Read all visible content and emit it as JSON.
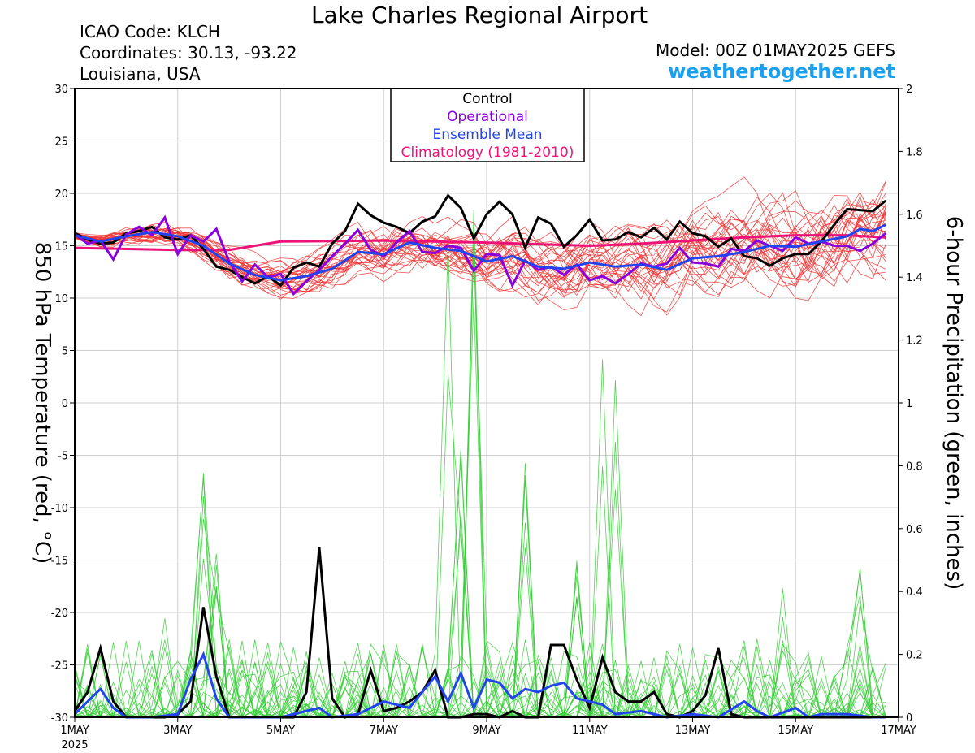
{
  "header": {
    "title": "Lake Charles Regional Airport",
    "icao": "ICAO Code: KLCH",
    "coords": "Coordinates: 30.13, -93.22",
    "location": "Louisiana, USA",
    "model": "Model: 00Z 01MAY2025 GEFS",
    "site": "weathertogether.net"
  },
  "chart_data": {
    "type": "line",
    "xlabel_ticks": [
      "1MAY",
      "3MAY",
      "5MAY",
      "7MAY",
      "9MAY",
      "11MAY",
      "13MAY",
      "15MAY",
      "17MAY"
    ],
    "x_year_label": "2025",
    "x_range_days": [
      0,
      16
    ],
    "y_left": {
      "label": "850 hPa Temperature (red, °C)",
      "range": [
        -30,
        30
      ],
      "ticks": [
        "30",
        "25",
        "20",
        "15",
        "10",
        "5",
        "0",
        "-5",
        "-10",
        "-15",
        "-20",
        "-25",
        "-30"
      ]
    },
    "y_right": {
      "label": "6-hour Precipitation (green, inches)",
      "range": [
        0,
        2
      ],
      "ticks": [
        "2",
        "1.8",
        "1.6",
        "1.4",
        "1.2",
        "1",
        "0.8",
        "0.6",
        "0.4",
        "0.2",
        "0"
      ]
    },
    "legend": {
      "placement": "top-center",
      "entries": [
        {
          "label": "Control",
          "color": "#000000"
        },
        {
          "label": "Operational",
          "color": "#8800dd"
        },
        {
          "label": "Ensemble Mean",
          "color": "#2244ee"
        },
        {
          "label": "Climatology (1981-2010)",
          "color": "#ee1177"
        }
      ]
    },
    "colors": {
      "member_temp": "#ee3333",
      "member_precip": "#33cc33",
      "control": "#000000",
      "operational": "#8800dd",
      "mean": "#2244ee",
      "climatology": "#ee1177"
    },
    "series_temperature": {
      "control": [
        [
          0,
          16.2
        ],
        [
          0.25,
          15.6
        ],
        [
          0.5,
          15.2
        ],
        [
          0.75,
          15.3
        ],
        [
          1,
          16.2
        ],
        [
          1.25,
          16.4
        ],
        [
          1.5,
          16.8
        ],
        [
          1.75,
          15.8
        ],
        [
          2,
          15.6
        ],
        [
          2.25,
          16.0
        ],
        [
          2.5,
          14.7
        ],
        [
          2.75,
          13.0
        ],
        [
          3,
          12.7
        ],
        [
          3.25,
          12.0
        ],
        [
          3.5,
          11.4
        ],
        [
          3.75,
          12.1
        ],
        [
          4,
          11.2
        ],
        [
          4.25,
          12.9
        ],
        [
          4.5,
          13.4
        ],
        [
          4.75,
          13.0
        ],
        [
          5,
          15.2
        ],
        [
          5.25,
          16.4
        ],
        [
          5.5,
          19.0
        ],
        [
          5.75,
          17.9
        ],
        [
          6,
          17.2
        ],
        [
          6.25,
          16.8
        ],
        [
          6.5,
          16.2
        ],
        [
          6.75,
          17.3
        ],
        [
          7,
          17.8
        ],
        [
          7.25,
          19.8
        ],
        [
          7.5,
          18.6
        ],
        [
          7.75,
          15.7
        ],
        [
          8,
          18.0
        ],
        [
          8.25,
          19.2
        ],
        [
          8.5,
          18.0
        ],
        [
          8.75,
          14.8
        ],
        [
          9,
          17.7
        ],
        [
          9.25,
          17.1
        ],
        [
          9.5,
          14.9
        ],
        [
          9.75,
          16.0
        ],
        [
          10,
          17.5
        ],
        [
          10.25,
          15.5
        ],
        [
          10.5,
          15.6
        ],
        [
          10.75,
          16.3
        ],
        [
          11,
          15.8
        ],
        [
          11.25,
          16.7
        ],
        [
          11.5,
          15.6
        ],
        [
          11.75,
          17.3
        ],
        [
          12,
          16.2
        ],
        [
          12.25,
          15.9
        ],
        [
          12.5,
          14.9
        ],
        [
          12.75,
          15.7
        ],
        [
          13,
          14.0
        ],
        [
          13.25,
          13.8
        ],
        [
          13.5,
          13.1
        ],
        [
          13.75,
          13.8
        ],
        [
          14,
          14.2
        ],
        [
          14.25,
          14.2
        ],
        [
          14.5,
          15.4
        ],
        [
          14.75,
          17.0
        ],
        [
          15,
          18.5
        ],
        [
          15.25,
          18.4
        ],
        [
          15.5,
          18.3
        ],
        [
          15.75,
          19.3
        ]
      ],
      "operational": [
        [
          0,
          16.1
        ],
        [
          0.25,
          15.2
        ],
        [
          0.5,
          15.5
        ],
        [
          0.75,
          13.7
        ],
        [
          1,
          16.1
        ],
        [
          1.25,
          16.8
        ],
        [
          1.5,
          16.0
        ],
        [
          1.75,
          17.7
        ],
        [
          2,
          14.2
        ],
        [
          2.25,
          16.0
        ],
        [
          2.5,
          15.4
        ],
        [
          2.75,
          16.6
        ],
        [
          3,
          13.5
        ],
        [
          3.25,
          11.6
        ],
        [
          3.5,
          13.2
        ],
        [
          3.75,
          12.0
        ],
        [
          4,
          12.3
        ],
        [
          4.25,
          10.4
        ],
        [
          4.5,
          11.6
        ],
        [
          4.75,
          12.7
        ],
        [
          5,
          14.0
        ],
        [
          5.25,
          15.2
        ],
        [
          5.5,
          16.5
        ],
        [
          5.75,
          14.6
        ],
        [
          6,
          14.0
        ],
        [
          6.25,
          15.3
        ],
        [
          6.5,
          16.4
        ],
        [
          6.75,
          14.4
        ],
        [
          7,
          14.3
        ],
        [
          7.25,
          15.0
        ],
        [
          7.5,
          14.8
        ],
        [
          7.75,
          12.6
        ],
        [
          8,
          14.2
        ],
        [
          8.25,
          14.1
        ],
        [
          8.5,
          11.2
        ],
        [
          8.75,
          13.6
        ],
        [
          9,
          12.7
        ],
        [
          9.25,
          13.0
        ],
        [
          9.5,
          12.2
        ],
        [
          9.75,
          13.2
        ],
        [
          10,
          11.7
        ],
        [
          10.25,
          12.1
        ],
        [
          10.5,
          11.4
        ],
        [
          10.75,
          12.3
        ],
        [
          11,
          13.3
        ],
        [
          11.25,
          13.0
        ],
        [
          11.5,
          13.3
        ],
        [
          11.75,
          14.8
        ],
        [
          12,
          13.4
        ],
        [
          12.25,
          13.3
        ],
        [
          12.5,
          13.0
        ],
        [
          12.75,
          14.7
        ],
        [
          13,
          14.5
        ],
        [
          13.25,
          15.5
        ],
        [
          13.5,
          15.0
        ],
        [
          13.75,
          14.5
        ],
        [
          14,
          15.8
        ],
        [
          14.25,
          15.2
        ],
        [
          14.5,
          15.4
        ],
        [
          14.75,
          15.0
        ],
        [
          15,
          15.0
        ],
        [
          15.25,
          14.5
        ],
        [
          15.5,
          15.2
        ],
        [
          15.75,
          16.2
        ]
      ],
      "mean": [
        [
          0,
          16.0
        ],
        [
          0.5,
          15.4
        ],
        [
          1,
          15.9
        ],
        [
          1.5,
          16.3
        ],
        [
          2,
          15.9
        ],
        [
          2.5,
          15.0
        ],
        [
          3,
          13.3
        ],
        [
          3.5,
          12.2
        ],
        [
          4,
          11.7
        ],
        [
          4.5,
          12.1
        ],
        [
          5,
          12.8
        ],
        [
          5.5,
          14.4
        ],
        [
          6,
          14.2
        ],
        [
          6.5,
          15.3
        ],
        [
          7,
          14.8
        ],
        [
          7.5,
          14.5
        ],
        [
          8,
          13.5
        ],
        [
          8.5,
          14.0
        ],
        [
          9,
          13.0
        ],
        [
          9.5,
          12.8
        ],
        [
          10,
          13.4
        ],
        [
          10.5,
          13.0
        ],
        [
          11,
          13.2
        ],
        [
          11.5,
          12.7
        ],
        [
          12,
          13.8
        ],
        [
          12.5,
          14.0
        ],
        [
          13,
          14.4
        ],
        [
          13.5,
          15.0
        ],
        [
          14,
          14.9
        ],
        [
          14.5,
          15.4
        ],
        [
          15,
          15.9
        ],
        [
          15.25,
          16.6
        ],
        [
          15.5,
          16.4
        ],
        [
          15.75,
          17.0
        ]
      ],
      "climatology": [
        [
          0,
          14.8
        ],
        [
          2,
          14.6
        ],
        [
          3,
          14.6
        ],
        [
          4,
          15.4
        ],
        [
          6,
          15.5
        ],
        [
          8,
          15.3
        ],
        [
          10,
          15.0
        ],
        [
          11,
          15.2
        ],
        [
          13,
          15.8
        ],
        [
          14,
          16.0
        ],
        [
          15,
          16.0
        ],
        [
          15.75,
          15.8
        ]
      ]
    },
    "series_precipitation": {
      "control": [
        [
          0,
          0.02
        ],
        [
          0.25,
          0.08
        ],
        [
          0.5,
          0.22
        ],
        [
          0.75,
          0.05
        ],
        [
          1,
          0.0
        ],
        [
          1.25,
          0.0
        ],
        [
          1.5,
          0.0
        ],
        [
          1.75,
          0.0
        ],
        [
          2,
          0.01
        ],
        [
          2.25,
          0.05
        ],
        [
          2.5,
          0.35
        ],
        [
          2.75,
          0.13
        ],
        [
          3,
          0.0
        ],
        [
          3.25,
          0.0
        ],
        [
          3.5,
          0.0
        ],
        [
          3.75,
          0.0
        ],
        [
          4,
          0.0
        ],
        [
          4.25,
          0.0
        ],
        [
          4.5,
          0.08
        ],
        [
          4.75,
          0.54
        ],
        [
          5,
          0.06
        ],
        [
          5.25,
          0.0
        ],
        [
          5.5,
          0.01
        ],
        [
          5.75,
          0.15
        ],
        [
          6,
          0.02
        ],
        [
          6.25,
          0.03
        ],
        [
          6.5,
          0.05
        ],
        [
          6.75,
          0.08
        ],
        [
          7,
          0.15
        ],
        [
          7.25,
          0.0
        ],
        [
          7.5,
          0.0
        ],
        [
          7.75,
          0.01
        ],
        [
          8,
          0.01
        ],
        [
          8.25,
          0.0
        ],
        [
          8.5,
          0.02
        ],
        [
          8.75,
          0.0
        ],
        [
          9,
          0.0
        ],
        [
          9.25,
          0.23
        ],
        [
          9.5,
          0.23
        ],
        [
          9.75,
          0.12
        ],
        [
          10,
          0.03
        ],
        [
          10.25,
          0.19
        ],
        [
          10.5,
          0.08
        ],
        [
          10.75,
          0.05
        ],
        [
          11,
          0.05
        ],
        [
          11.25,
          0.08
        ],
        [
          11.5,
          0.01
        ],
        [
          11.75,
          0.0
        ],
        [
          12,
          0.02
        ],
        [
          12.25,
          0.07
        ],
        [
          12.5,
          0.22
        ],
        [
          12.75,
          0.01
        ],
        [
          13,
          0.0
        ],
        [
          13.25,
          0.0
        ],
        [
          13.5,
          0.0
        ],
        [
          13.75,
          0.0
        ],
        [
          14,
          0.0
        ],
        [
          14.25,
          0.0
        ],
        [
          14.5,
          0.0
        ],
        [
          14.75,
          0.0
        ],
        [
          15,
          0.0
        ],
        [
          15.25,
          0.0
        ],
        [
          15.5,
          0.0
        ],
        [
          15.75,
          0.0
        ]
      ],
      "mean": [
        [
          0,
          0.01
        ],
        [
          0.5,
          0.09
        ],
        [
          0.75,
          0.03
        ],
        [
          1,
          0.0
        ],
        [
          1.5,
          0.0
        ],
        [
          2,
          0.01
        ],
        [
          2.25,
          0.12
        ],
        [
          2.5,
          0.2
        ],
        [
          2.75,
          0.06
        ],
        [
          3,
          0.0
        ],
        [
          4,
          0.0
        ],
        [
          4.75,
          0.03
        ],
        [
          5,
          0.0
        ],
        [
          5.5,
          0.01
        ],
        [
          6,
          0.05
        ],
        [
          6.5,
          0.03
        ],
        [
          7,
          0.13
        ],
        [
          7.25,
          0.05
        ],
        [
          7.5,
          0.14
        ],
        [
          7.75,
          0.03
        ],
        [
          8,
          0.12
        ],
        [
          8.25,
          0.11
        ],
        [
          8.5,
          0.06
        ],
        [
          8.75,
          0.09
        ],
        [
          9,
          0.08
        ],
        [
          9.25,
          0.1
        ],
        [
          9.5,
          0.11
        ],
        [
          9.75,
          0.06
        ],
        [
          10,
          0.05
        ],
        [
          10.25,
          0.04
        ],
        [
          10.5,
          0.01
        ],
        [
          11,
          0.02
        ],
        [
          11.5,
          0.0
        ],
        [
          12,
          0.01
        ],
        [
          12.5,
          0.0
        ],
        [
          13,
          0.05
        ],
        [
          13.25,
          0.02
        ],
        [
          13.5,
          0.0
        ],
        [
          14,
          0.03
        ],
        [
          14.25,
          0.0
        ],
        [
          14.5,
          0.01
        ],
        [
          15,
          0.01
        ],
        [
          15.5,
          0.0
        ],
        [
          15.75,
          0.0
        ]
      ]
    }
  }
}
